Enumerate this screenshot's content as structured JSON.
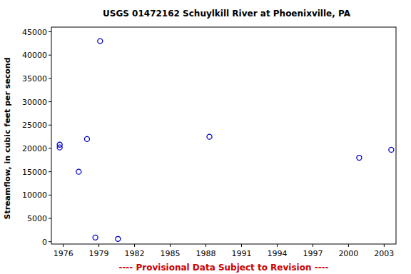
{
  "chart_data": {
    "type": "scatter",
    "title": "USGS 01472162 Schuylkill River at Phoenixville, PA",
    "y_label": "Streamflow, in cubic feet per second",
    "caption": "---- Provisional Data Subject to Revision ----",
    "x": [
      1975.7,
      1975.7,
      1977.3,
      1978.0,
      1978.7,
      1979.1,
      1980.6,
      1988.3,
      2000.9,
      2003.6
    ],
    "values": [
      20800,
      20200,
      15000,
      22000,
      900,
      43000,
      600,
      22500,
      18000,
      19700
    ],
    "xlim": [
      1975.0,
      2004.0
    ],
    "xticks": [
      1976,
      1979,
      1982,
      1985,
      1988,
      1991,
      1994,
      1997,
      2000,
      2003
    ],
    "ylim": [
      -500,
      46000
    ],
    "yticks": [
      0,
      5000,
      10000,
      15000,
      20000,
      25000,
      30000,
      35000,
      40000,
      45000
    ],
    "color": "#0000cc",
    "marker": "circle",
    "grid": false
  }
}
